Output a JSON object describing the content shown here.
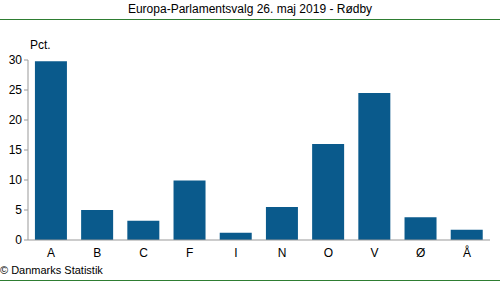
{
  "chart_data": {
    "type": "bar",
    "title": "Europa-Parlamentsvalg 26. maj 2019 - Rødby",
    "ylabel": "Pct.",
    "annotations": [
      "© Danmarks Statistik"
    ],
    "categories": [
      "A",
      "B",
      "C",
      "F",
      "I",
      "N",
      "O",
      "V",
      "Ø",
      "Å"
    ],
    "values": [
      29.8,
      5.0,
      3.2,
      9.9,
      1.2,
      5.5,
      16.0,
      24.5,
      3.8,
      1.7
    ],
    "color": "#0a5a8c",
    "ylim": [
      0,
      30
    ],
    "yticks": [
      0,
      5,
      10,
      15,
      20,
      25,
      30
    ],
    "grid": false
  }
}
